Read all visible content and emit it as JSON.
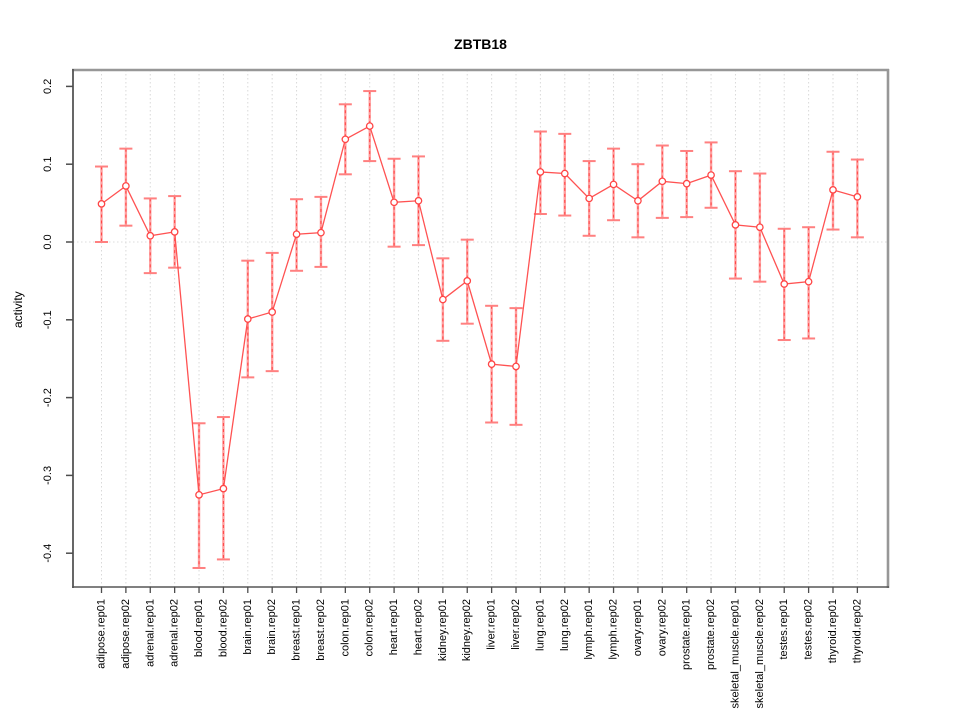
{
  "title": "ZBTB18",
  "chart_data": {
    "type": "scatter",
    "title": "ZBTB18",
    "xlabel": "",
    "ylabel": "activity",
    "legend_position": "none",
    "grid": "vertical dotted gridlines per category plus dotted zero line",
    "ylim": [
      -0.44,
      0.22
    ],
    "yticks": [
      0.2,
      0.1,
      0.0,
      -0.1,
      -0.2,
      -0.3,
      -0.4
    ],
    "categories": [
      "adipose.rep01",
      "adipose.rep02",
      "adrenal.rep01",
      "adrenal.rep02",
      "blood.rep01",
      "blood.rep02",
      "brain.rep01",
      "brain.rep02",
      "breast.rep01",
      "breast.rep02",
      "colon.rep01",
      "colon.rep02",
      "heart.rep01",
      "heart.rep02",
      "kidney.rep01",
      "kidney.rep02",
      "liver.rep01",
      "liver.rep02",
      "lung.rep01",
      "lung.rep02",
      "lymph.rep01",
      "lymph.rep02",
      "ovary.rep01",
      "ovary.rep02",
      "prostate.rep01",
      "prostate.rep02",
      "skeletal_muscle.rep01",
      "skeletal_muscle.rep02",
      "testes.rep01",
      "testes.rep02",
      "thyroid.rep01",
      "thyroid.rep02"
    ],
    "series": [
      {
        "name": "activity",
        "values": [
          0.049,
          0.072,
          0.008,
          0.013,
          -0.325,
          -0.317,
          -0.099,
          -0.09,
          0.01,
          0.012,
          0.132,
          0.149,
          0.051,
          0.053,
          -0.074,
          -0.05,
          -0.157,
          -0.16,
          0.09,
          0.088,
          0.056,
          0.074,
          0.053,
          0.078,
          0.075,
          0.086,
          0.022,
          0.019,
          -0.054,
          -0.051,
          0.067,
          0.058
        ],
        "ci_low": [
          0.0,
          0.021,
          -0.04,
          -0.033,
          -0.419,
          -0.408,
          -0.174,
          -0.166,
          -0.037,
          -0.032,
          0.087,
          0.104,
          -0.006,
          -0.004,
          -0.127,
          -0.105,
          -0.232,
          -0.235,
          0.036,
          0.034,
          0.008,
          0.028,
          0.006,
          0.031,
          0.032,
          0.044,
          -0.047,
          -0.051,
          -0.126,
          -0.124,
          0.016,
          0.006
        ],
        "ci_high": [
          0.097,
          0.12,
          0.056,
          0.059,
          -0.233,
          -0.225,
          -0.024,
          -0.014,
          0.055,
          0.058,
          0.177,
          0.194,
          0.107,
          0.11,
          -0.021,
          0.003,
          -0.082,
          -0.085,
          0.142,
          0.139,
          0.104,
          0.12,
          0.1,
          0.124,
          0.117,
          0.128,
          0.091,
          0.088,
          0.017,
          0.019,
          0.116,
          0.106
        ]
      }
    ],
    "colors": {
      "point": "#ff4545",
      "line": "#ff5252",
      "error_bar_solid": "#ff9e9e",
      "error_bar_dashed": "#ff4545",
      "error_cap": "#ff8080",
      "gridline": "#d9d9d9",
      "zero_line": "#dcdcdc",
      "box_light": "#979797",
      "box_dark": "#565656",
      "tick": "#4d4d4d",
      "label_text": "#000000"
    }
  }
}
